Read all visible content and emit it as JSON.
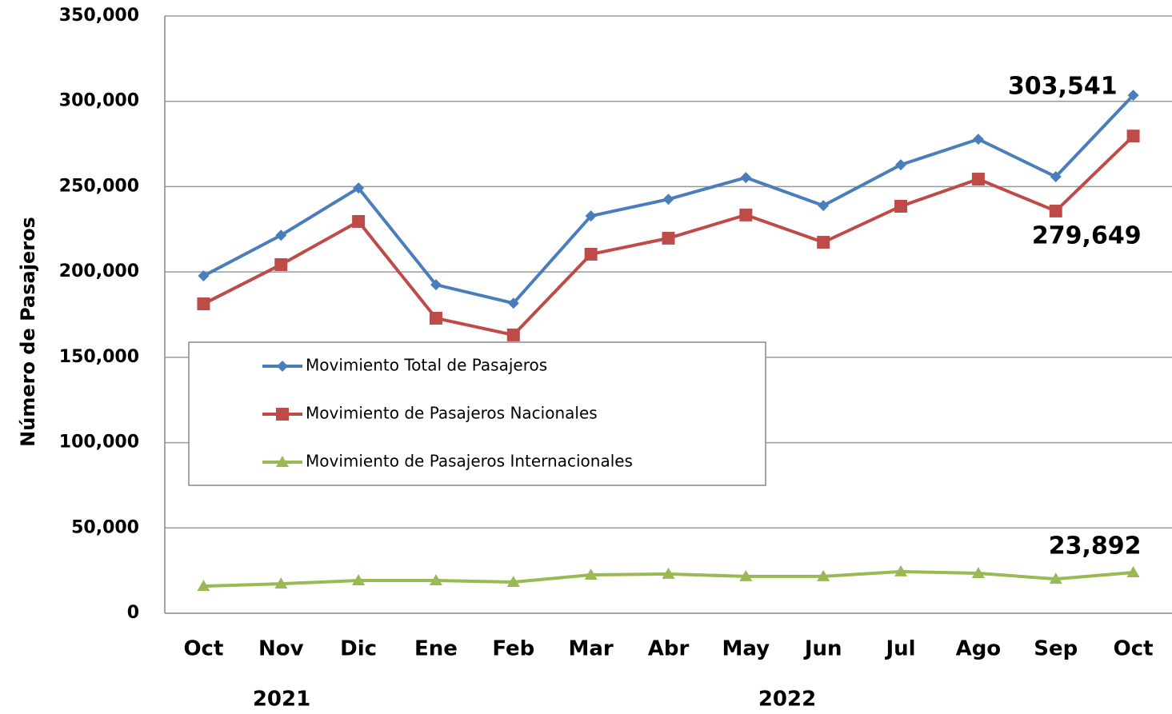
{
  "chart_data": {
    "type": "line",
    "y_label": "Número de Pasajeros",
    "categories": [
      "Oct",
      "Nov",
      "Dic",
      "Ene",
      "Feb",
      "Mar",
      "Abr",
      "May",
      "Jun",
      "Jul",
      "Ago",
      "Sep",
      "Oct"
    ],
    "year_labels": [
      "2021",
      "2022"
    ],
    "ylim": [
      0,
      350000
    ],
    "yticks": [
      0,
      {
        "value": 50000,
        "label": "50,000"
      },
      {
        "value": 100000,
        "label": "100,000"
      },
      {
        "value": 150000,
        "label": "150,000"
      },
      {
        "value": 200000,
        "label": "200,000"
      },
      {
        "value": 250000,
        "label": "250,000"
      },
      {
        "value": 300000,
        "label": "300,000"
      },
      {
        "value": 350000,
        "label": "350,000"
      }
    ],
    "grid": true,
    "series": [
      {
        "name": "Movimiento Total de Pasajeros",
        "color": "#4a7ebb",
        "marker": "diamond",
        "values": [
          197700,
          221500,
          249200,
          192500,
          181700,
          232800,
          242600,
          255300,
          238900,
          262800,
          277800,
          255800,
          303541
        ],
        "value_labels": [
          null,
          null,
          null,
          null,
          null,
          null,
          null,
          null,
          null,
          null,
          null,
          null,
          "303,541"
        ]
      },
      {
        "name": "Movimiento de Pasajeros Nacionales",
        "color": "#be4b48",
        "marker": "square",
        "values": [
          181300,
          204300,
          229600,
          172900,
          163100,
          210400,
          219800,
          233400,
          217400,
          238500,
          254400,
          235700,
          279649
        ],
        "value_labels": [
          null,
          null,
          null,
          null,
          null,
          null,
          null,
          null,
          null,
          null,
          null,
          null,
          "279,649"
        ]
      },
      {
        "name": "Movimiento de Pasajeros Internacionales",
        "color": "#98b954",
        "marker": "triangle",
        "values": [
          15900,
          17300,
          19200,
          19200,
          18300,
          22500,
          23000,
          21600,
          21600,
          24400,
          23400,
          20100,
          23892
        ],
        "value_labels": [
          null,
          null,
          null,
          null,
          null,
          null,
          null,
          null,
          null,
          null,
          null,
          null,
          "23,892"
        ]
      }
    ]
  }
}
